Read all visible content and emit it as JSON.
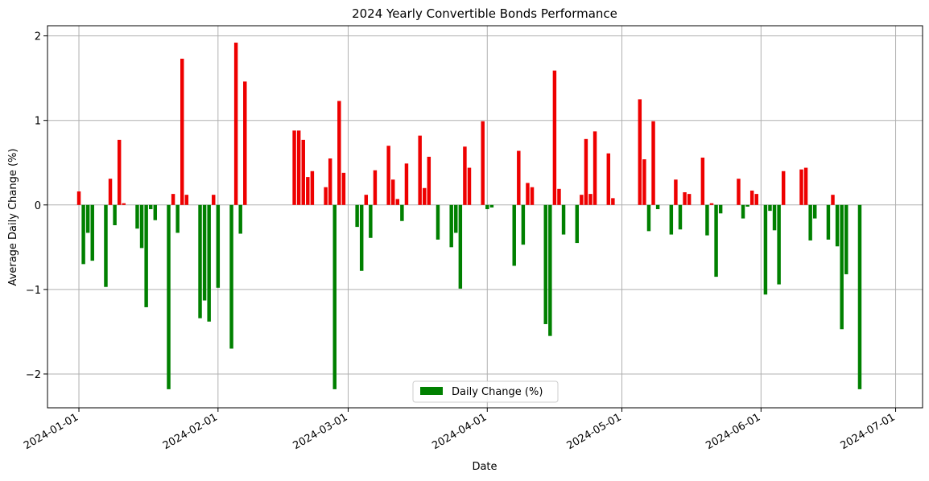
{
  "chart_data": {
    "type": "bar",
    "title": "2024 Yearly Convertible Bonds Performance",
    "xlabel": "Date",
    "ylabel": "Average Daily Change (%)",
    "xlim": [
      "2023-12-25",
      "2024-07-07"
    ],
    "ylim": [
      -2.4,
      2.12
    ],
    "yticks": [
      -2,
      -1,
      0,
      1,
      2
    ],
    "ytick_labels": [
      "−2",
      "−1",
      "0",
      "1",
      "2"
    ],
    "xticks": [
      "2024-01-01",
      "2024-02-01",
      "2024-03-01",
      "2024-04-01",
      "2024-05-01",
      "2024-06-01",
      "2024-07-01"
    ],
    "grid": true,
    "legend": {
      "position": "lower center",
      "entries": [
        "Daily Change (%)"
      ]
    },
    "colors": {
      "positive": "#ee0000",
      "negative": "#008000",
      "grid": "#b0b0b0"
    },
    "series": [
      {
        "name": "Daily Change (%)",
        "points": [
          [
            "2024-01-01",
            0.16
          ],
          [
            "2024-01-02",
            -0.7
          ],
          [
            "2024-01-03",
            -0.33
          ],
          [
            "2024-01-04",
            -0.66
          ],
          [
            "2024-01-07",
            -0.97
          ],
          [
            "2024-01-08",
            0.31
          ],
          [
            "2024-01-09",
            -0.24
          ],
          [
            "2024-01-10",
            0.77
          ],
          [
            "2024-01-11",
            0.02
          ],
          [
            "2024-01-14",
            -0.28
          ],
          [
            "2024-01-15",
            -0.51
          ],
          [
            "2024-01-16",
            -1.21
          ],
          [
            "2024-01-17",
            -0.05
          ],
          [
            "2024-01-18",
            -0.18
          ],
          [
            "2024-01-21",
            -2.18
          ],
          [
            "2024-01-22",
            0.13
          ],
          [
            "2024-01-23",
            -0.33
          ],
          [
            "2024-01-24",
            1.73
          ],
          [
            "2024-01-25",
            0.12
          ],
          [
            "2024-01-28",
            -1.34
          ],
          [
            "2024-01-29",
            -1.13
          ],
          [
            "2024-01-30",
            -1.38
          ],
          [
            "2024-01-31",
            0.12
          ],
          [
            "2024-02-01",
            -0.98
          ],
          [
            "2024-02-04",
            -1.7
          ],
          [
            "2024-02-05",
            1.92
          ],
          [
            "2024-02-06",
            -0.34
          ],
          [
            "2024-02-07",
            1.46
          ],
          [
            "2024-02-18",
            0.88
          ],
          [
            "2024-02-19",
            0.88
          ],
          [
            "2024-02-20",
            0.77
          ],
          [
            "2024-02-21",
            0.33
          ],
          [
            "2024-02-22",
            0.4
          ],
          [
            "2024-02-25",
            0.21
          ],
          [
            "2024-02-26",
            0.55
          ],
          [
            "2024-02-27",
            -2.18
          ],
          [
            "2024-02-28",
            1.23
          ],
          [
            "2024-02-29",
            0.38
          ],
          [
            "2024-03-03",
            -0.26
          ],
          [
            "2024-03-04",
            -0.78
          ],
          [
            "2024-03-05",
            0.12
          ],
          [
            "2024-03-06",
            -0.39
          ],
          [
            "2024-03-07",
            0.41
          ],
          [
            "2024-03-10",
            0.7
          ],
          [
            "2024-03-11",
            0.3
          ],
          [
            "2024-03-12",
            0.07
          ],
          [
            "2024-03-13",
            -0.19
          ],
          [
            "2024-03-14",
            0.49
          ],
          [
            "2024-03-17",
            0.82
          ],
          [
            "2024-03-18",
            0.2
          ],
          [
            "2024-03-19",
            0.57
          ],
          [
            "2024-03-21",
            -0.41
          ],
          [
            "2024-03-24",
            -0.5
          ],
          [
            "2024-03-25",
            -0.33
          ],
          [
            "2024-03-26",
            -0.99
          ],
          [
            "2024-03-27",
            0.69
          ],
          [
            "2024-03-28",
            0.44
          ],
          [
            "2024-03-31",
            0.99
          ],
          [
            "2024-04-01",
            -0.05
          ],
          [
            "2024-04-02",
            -0.03
          ],
          [
            "2024-04-07",
            -0.72
          ],
          [
            "2024-04-08",
            0.64
          ],
          [
            "2024-04-09",
            -0.47
          ],
          [
            "2024-04-10",
            0.26
          ],
          [
            "2024-04-11",
            0.21
          ],
          [
            "2024-04-14",
            -1.41
          ],
          [
            "2024-04-15",
            -1.55
          ],
          [
            "2024-04-16",
            1.59
          ],
          [
            "2024-04-17",
            0.19
          ],
          [
            "2024-04-18",
            -0.35
          ],
          [
            "2024-04-21",
            -0.45
          ],
          [
            "2024-04-22",
            0.12
          ],
          [
            "2024-04-23",
            0.78
          ],
          [
            "2024-04-24",
            0.13
          ],
          [
            "2024-04-25",
            0.87
          ],
          [
            "2024-04-28",
            0.61
          ],
          [
            "2024-04-29",
            0.08
          ],
          [
            "2024-05-05",
            1.25
          ],
          [
            "2024-05-06",
            0.54
          ],
          [
            "2024-05-07",
            -0.31
          ],
          [
            "2024-05-08",
            0.99
          ],
          [
            "2024-05-09",
            -0.05
          ],
          [
            "2024-05-12",
            -0.35
          ],
          [
            "2024-05-13",
            0.3
          ],
          [
            "2024-05-14",
            -0.29
          ],
          [
            "2024-05-15",
            0.15
          ],
          [
            "2024-05-16",
            0.13
          ],
          [
            "2024-05-19",
            0.56
          ],
          [
            "2024-05-20",
            -0.36
          ],
          [
            "2024-05-21",
            0.02
          ],
          [
            "2024-05-22",
            -0.85
          ],
          [
            "2024-05-23",
            -0.1
          ],
          [
            "2024-05-27",
            0.31
          ],
          [
            "2024-05-28",
            -0.16
          ],
          [
            "2024-05-29",
            -0.02
          ],
          [
            "2024-05-30",
            0.17
          ],
          [
            "2024-05-31",
            0.13
          ],
          [
            "2024-06-02",
            -1.06
          ],
          [
            "2024-06-03",
            -0.07
          ],
          [
            "2024-06-04",
            -0.3
          ],
          [
            "2024-06-05",
            -0.94
          ],
          [
            "2024-06-06",
            0.4
          ],
          [
            "2024-06-10",
            0.42
          ],
          [
            "2024-06-11",
            0.44
          ],
          [
            "2024-06-12",
            -0.42
          ],
          [
            "2024-06-13",
            -0.16
          ],
          [
            "2024-06-16",
            -0.41
          ],
          [
            "2024-06-17",
            0.12
          ],
          [
            "2024-06-18",
            -0.49
          ],
          [
            "2024-06-19",
            -1.47
          ],
          [
            "2024-06-20",
            -0.82
          ],
          [
            "2024-06-23",
            -2.18
          ]
        ]
      }
    ]
  }
}
